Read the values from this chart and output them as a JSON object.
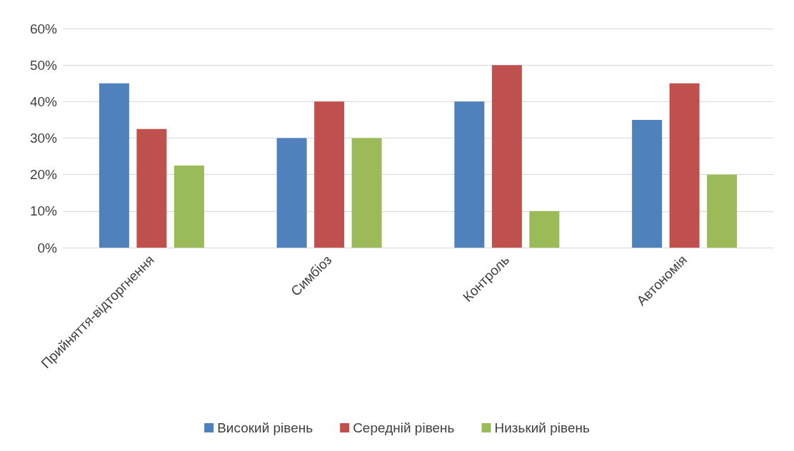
{
  "chart_data": {
    "type": "bar",
    "categories": [
      "Прийняття-відторгнення",
      "Симбіоз",
      "Контроль",
      "Автономія"
    ],
    "series": [
      {
        "name": "Високий рівень",
        "color": "#4f81bd",
        "values": [
          45,
          30,
          40,
          35
        ]
      },
      {
        "name": "Середній рівень",
        "color": "#c0504d",
        "values": [
          32.5,
          40,
          50,
          45
        ]
      },
      {
        "name": "Низький рівень",
        "color": "#9bbb59",
        "values": [
          22.5,
          30,
          10,
          20
        ]
      }
    ],
    "ylim": [
      0,
      60
    ],
    "yticks": [
      {
        "value": 0,
        "label": "0%"
      },
      {
        "value": 10,
        "label": "10%"
      },
      {
        "value": 20,
        "label": "20%"
      },
      {
        "value": 30,
        "label": "30%"
      },
      {
        "value": 40,
        "label": "40%"
      },
      {
        "value": 50,
        "label": "50%"
      },
      {
        "value": 60,
        "label": "60%"
      }
    ],
    "grid": "y",
    "legend": "bottom"
  }
}
